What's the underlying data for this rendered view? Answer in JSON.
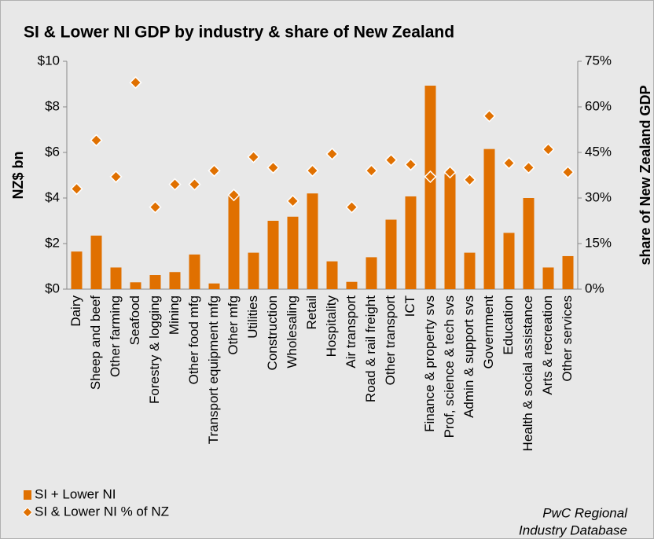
{
  "chart_data": {
    "type": "bar",
    "title": "SI & Lower NI GDP by industry & share of New Zealand",
    "ylabel": "NZ$ bn",
    "y2label": "share of New Zealand GDP",
    "categories": [
      "Dairy",
      "Sheep and beef",
      "Other farming",
      "Seafood",
      "Forestry & logging",
      "Mining",
      "Other food mfg",
      "Transport equipment mfg",
      "Other mfg",
      "Utilities",
      "Construction",
      "Wholesaling",
      "Retail",
      "Hospitality",
      "Air transport",
      "Road & rail freight",
      "Other transport",
      "ICT",
      "Finance & property svs",
      "Prof, science & tech svs",
      "Admin & support svs",
      "Government",
      "Education",
      "Health & social assistance",
      "Arts & recreation",
      "Other services"
    ],
    "series": [
      {
        "name": "SI + Lower NI",
        "type": "bar",
        "color": "#e07000",
        "values": [
          1.65,
          2.35,
          0.95,
          0.3,
          0.62,
          0.75,
          1.52,
          0.25,
          4.1,
          1.6,
          3.0,
          3.18,
          4.2,
          1.22,
          0.32,
          1.4,
          3.05,
          4.07,
          8.93,
          5.05,
          1.6,
          6.15,
          2.47,
          4.0,
          0.95,
          1.45
        ]
      },
      {
        "name": "SI & Lower NI % of NZ",
        "type": "scatter",
        "axis": "y2",
        "color": "#e07000",
        "values": [
          33,
          49,
          37,
          68,
          27,
          34.5,
          34.5,
          39,
          31,
          43.5,
          40,
          29,
          39,
          44.5,
          27,
          39,
          42.5,
          41,
          37,
          38.5,
          36,
          57,
          41.5,
          40,
          46,
          38.5
        ]
      }
    ],
    "ylim": [
      0,
      10
    ],
    "yticks": [
      {
        "value": 0,
        "label": "$0"
      },
      {
        "value": 2,
        "label": "$2"
      },
      {
        "value": 4,
        "label": "$4"
      },
      {
        "value": 6,
        "label": "$6"
      },
      {
        "value": 8,
        "label": "$8"
      },
      {
        "value": 10,
        "label": "$10"
      }
    ],
    "y2lim": [
      0,
      75
    ],
    "y2ticks": [
      {
        "value": 0,
        "label": "0%"
      },
      {
        "value": 15,
        "label": "15%"
      },
      {
        "value": 30,
        "label": "30%"
      },
      {
        "value": 45,
        "label": "45%"
      },
      {
        "value": 60,
        "label": "60%"
      },
      {
        "value": 75,
        "label": "75%"
      }
    ],
    "grid": false,
    "legend": "bottom-left",
    "annotation": [
      "PwC Regional",
      "Industry Database"
    ]
  }
}
